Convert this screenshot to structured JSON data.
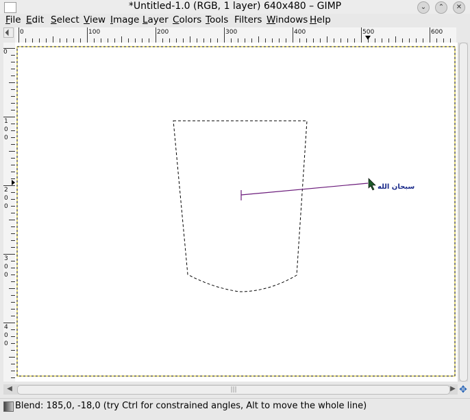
{
  "window": {
    "title": "*Untitled-1.0 (RGB, 1 layer) 640x480 – GIMP",
    "buttons": {
      "minimize": "⌄",
      "maximize": "⌃",
      "close": "✕"
    }
  },
  "menubar": {
    "items": [
      {
        "label": "File",
        "mnemonic": "F",
        "rest": "ile"
      },
      {
        "label": "Edit",
        "mnemonic": "E",
        "rest": "dit"
      },
      {
        "label": "Select",
        "mnemonic": "S",
        "rest": "elect"
      },
      {
        "label": "View",
        "mnemonic": "V",
        "rest": "iew"
      },
      {
        "label": "Image",
        "mnemonic": "I",
        "rest": "mage"
      },
      {
        "label": "Layer",
        "mnemonic": "L",
        "rest": "ayer"
      },
      {
        "label": "Colors",
        "mnemonic": "C",
        "rest": "olors"
      },
      {
        "label": "Tools",
        "mnemonic": "T",
        "rest": "ools"
      },
      {
        "label": "Filters",
        "mnemonic": "r",
        "rest": "Filte|s"
      },
      {
        "label": "Windows",
        "mnemonic": "W",
        "rest": "indows"
      },
      {
        "label": "Help",
        "mnemonic": "H",
        "rest": "elp"
      }
    ]
  },
  "rulers": {
    "horizontal_labels": [
      "0",
      "100",
      "200",
      "300",
      "400",
      "500",
      "600"
    ],
    "vertical_labels": [
      "0",
      "100",
      "200",
      "300",
      "400"
    ]
  },
  "canvas": {
    "annotation_text": "سبحان الله",
    "annotation_color": "#1a2a8a",
    "blend_line_color": "#6a1a7a",
    "selection_color": "#000000"
  },
  "scrollbar": {
    "thumb_glyph": "|||"
  },
  "nav_icon": "navigate-icon",
  "statusbar": {
    "text": "Blend: 185,0, -18,0 (try Ctrl for constrained angles, Alt to move the whole line)"
  }
}
